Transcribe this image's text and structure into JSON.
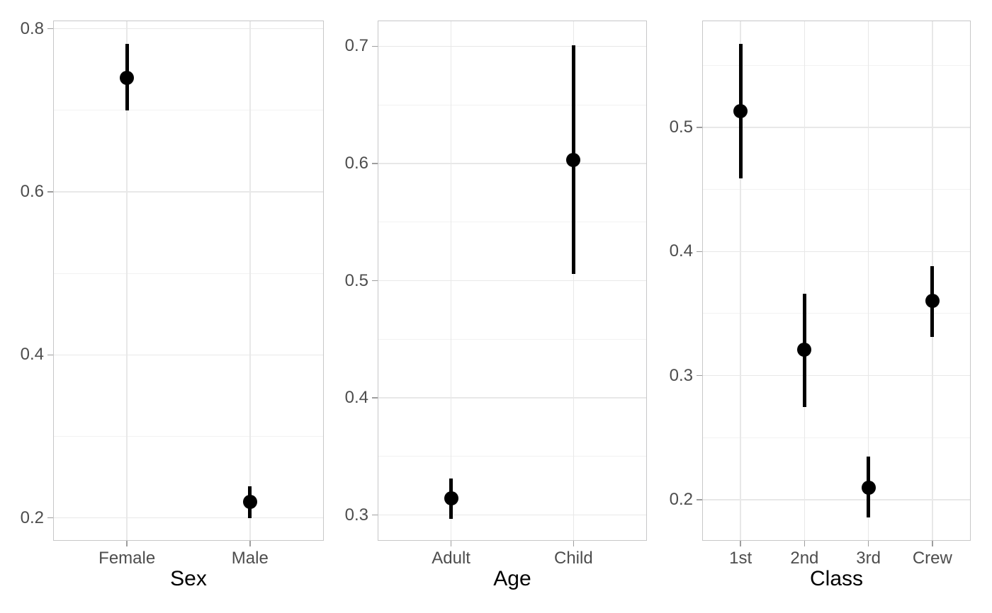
{
  "colors": {
    "background": "#FFFFFF",
    "panel_border": "#C7C7C8",
    "grid_major": "#E8E8E8",
    "grid_minor": "#F2F2F2",
    "tick_mark": "#9E9E9E",
    "tick_label": "#4D4D4D",
    "axis_title": "#000000",
    "point": "#000000"
  },
  "chart_data": [
    {
      "type": "scatter",
      "subtype": "pointrange",
      "xlabel": "Sex",
      "categories": [
        "Female",
        "Male"
      ],
      "points": [
        {
          "label": "Female",
          "estimate": 0.74,
          "ci_low": 0.7,
          "ci_high": 0.781
        },
        {
          "label": "Male",
          "estimate": 0.22,
          "ci_low": 0.2,
          "ci_high": 0.239
        }
      ],
      "yticks": [
        0.2,
        0.4,
        0.6,
        0.8
      ],
      "ytick_labels": [
        "0.2",
        "0.4",
        "0.6",
        "0.8"
      ],
      "yticks_minor": [
        0.3,
        0.5,
        0.7
      ],
      "ylim": [
        0.172,
        0.81
      ],
      "grid": "on",
      "legend": "none"
    },
    {
      "type": "scatter",
      "subtype": "pointrange",
      "xlabel": "Age",
      "categories": [
        "Adult",
        "Child"
      ],
      "points": [
        {
          "label": "Adult",
          "estimate": 0.314,
          "ci_low": 0.297,
          "ci_high": 0.331
        },
        {
          "label": "Child",
          "estimate": 0.603,
          "ci_low": 0.506,
          "ci_high": 0.701
        }
      ],
      "yticks": [
        0.3,
        0.4,
        0.5,
        0.6,
        0.7
      ],
      "ytick_labels": [
        "0.3",
        "0.4",
        "0.5",
        "0.6",
        "0.7"
      ],
      "yticks_minor": [
        0.35,
        0.45,
        0.55,
        0.65
      ],
      "ylim": [
        0.278,
        0.722
      ],
      "grid": "on",
      "legend": "none"
    },
    {
      "type": "scatter",
      "subtype": "pointrange",
      "xlabel": "Class",
      "categories": [
        "1st",
        "2nd",
        "3rd",
        "Crew"
      ],
      "points": [
        {
          "label": "1st",
          "estimate": 0.513,
          "ci_low": 0.459,
          "ci_high": 0.567
        },
        {
          "label": "2nd",
          "estimate": 0.321,
          "ci_low": 0.275,
          "ci_high": 0.366
        },
        {
          "label": "3rd",
          "estimate": 0.21,
          "ci_low": 0.186,
          "ci_high": 0.235
        },
        {
          "label": "Crew",
          "estimate": 0.36,
          "ci_low": 0.331,
          "ci_high": 0.388
        }
      ],
      "yticks": [
        0.2,
        0.3,
        0.4,
        0.5
      ],
      "ytick_labels": [
        "0.2",
        "0.3",
        "0.4",
        "0.5"
      ],
      "yticks_minor": [
        0.25,
        0.35,
        0.45,
        0.55
      ],
      "ylim": [
        0.167,
        0.586
      ],
      "grid": "on",
      "legend": "none"
    }
  ]
}
